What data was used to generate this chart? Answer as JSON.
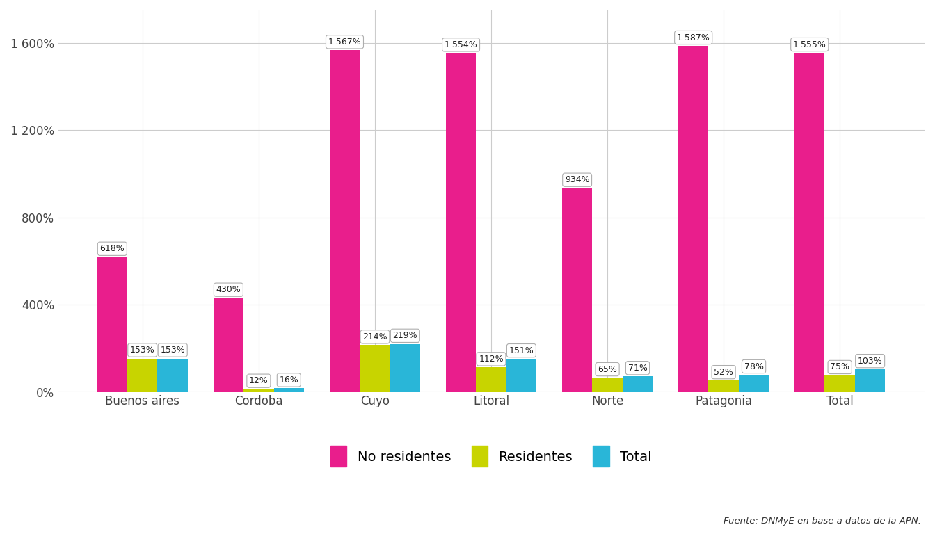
{
  "categories": [
    "Buenos aires",
    "Cordoba",
    "Cuyo",
    "Litoral",
    "Norte",
    "Patagonia",
    "Total"
  ],
  "no_residentes": [
    618,
    430,
    1567,
    1554,
    934,
    1587,
    1555
  ],
  "residentes": [
    153,
    12,
    214,
    112,
    65,
    52,
    75
  ],
  "total": [
    153,
    16,
    219,
    151,
    71,
    78,
    103
  ],
  "no_residentes_labels": [
    "618%",
    "430%",
    "1.567%",
    "1.554%",
    "934%",
    "1.587%",
    "1.555%"
  ],
  "residentes_labels": [
    "153%",
    "12%",
    "214%",
    "112%",
    "65%",
    "52%",
    "75%"
  ],
  "total_labels": [
    "153%",
    "16%",
    "219%",
    "151%",
    "71%",
    "78%",
    "103%"
  ],
  "color_no_residentes": "#E91E8C",
  "color_residentes": "#C8D400",
  "color_total": "#29B6D8",
  "background_color": "#FFFFFF",
  "grid_color": "#CCCCCC",
  "ylim": [
    0,
    1750
  ],
  "yticks": [
    0,
    400,
    800,
    1200,
    1600
  ],
  "ytick_labels": [
    "0%",
    "400%",
    "800%",
    "1 200%",
    "1 600%"
  ],
  "legend_labels": [
    "No residentes",
    "Residentes",
    "Total"
  ],
  "source_text": "Fuente: DNMyE en base a datos de la APN.",
  "bar_width": 0.26,
  "label_fontsize": 9,
  "tick_fontsize": 12,
  "legend_fontsize": 14
}
